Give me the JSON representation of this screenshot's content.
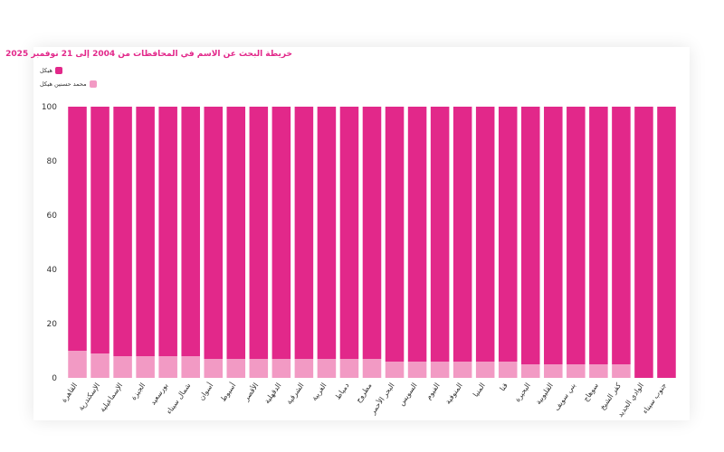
{
  "chart_data": {
    "type": "bar",
    "stacked": true,
    "title": "خريطة البحث عن الاسم في المحافظات من 2004 إلى 21 نوفمبر 2025",
    "ylim": [
      0,
      100
    ],
    "yticks": [
      0,
      20,
      40,
      60,
      80,
      100
    ],
    "legend_position": "top-left",
    "categories": [
      "القاهرة",
      "الإسكندرية",
      "الإسماعيلية",
      "الجيزة",
      "بورسعيد",
      "شمال سيناء",
      "أسوان",
      "أسيوط",
      "الأقصر",
      "الدقهلية",
      "الشرقية",
      "الغربية",
      "دمياط",
      "مطروح",
      "البحر الأحمر",
      "السويس",
      "الفيوم",
      "المنوفية",
      "المنيا",
      "قنا",
      "البحيرة",
      "القليوبية",
      "بني سويف",
      "سوهاج",
      "كفر الشيخ",
      "الوادي الجديد",
      "جنوب سيناء"
    ],
    "series": [
      {
        "name": "محمد حسنين هيكل",
        "color": "#f29ac4",
        "values": [
          10,
          9,
          8,
          8,
          8,
          8,
          7,
          7,
          7,
          7,
          7,
          7,
          7,
          7,
          6,
          6,
          6,
          6,
          6,
          6,
          5,
          5,
          5,
          5,
          5,
          0,
          0
        ]
      },
      {
        "name": "هيكل",
        "color": "#e2288a",
        "values": [
          90,
          91,
          92,
          92,
          92,
          92,
          93,
          93,
          93,
          93,
          93,
          93,
          93,
          93,
          94,
          94,
          94,
          94,
          94,
          94,
          95,
          95,
          95,
          95,
          95,
          100,
          100
        ]
      }
    ]
  }
}
